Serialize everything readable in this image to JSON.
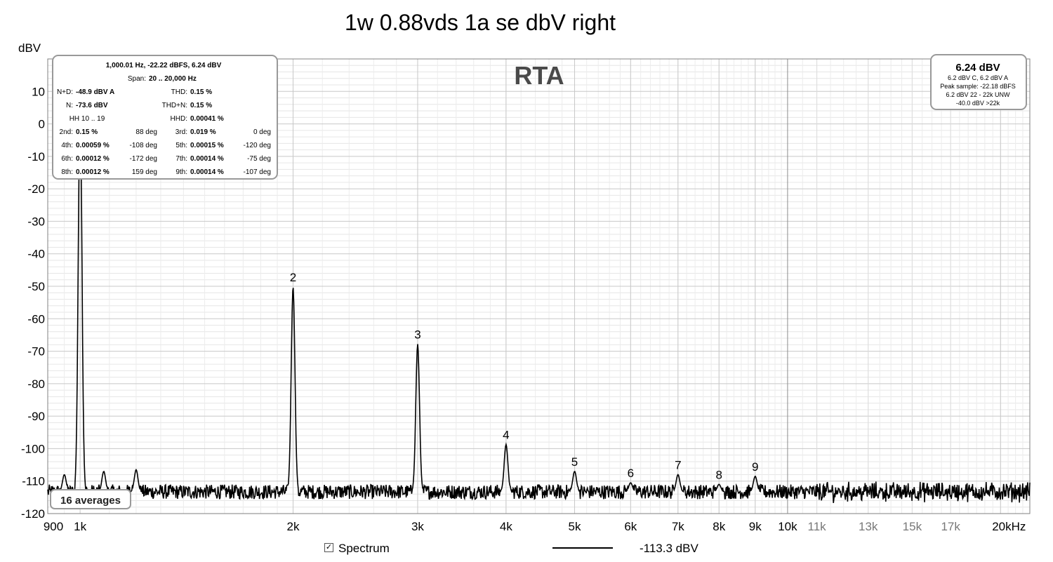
{
  "chart_data": {
    "type": "line",
    "title": "1w 0.88vds 1a se dbV right",
    "watermark": "RTA",
    "ylabel": "dBV",
    "xlabel": "",
    "x_scale": "log",
    "xlim": [
      900,
      22000
    ],
    "ylim": [
      -120,
      20
    ],
    "grid": true,
    "y_ticks": [
      10,
      0,
      -10,
      -20,
      -30,
      -40,
      -50,
      -60,
      -70,
      -80,
      -90,
      -100,
      -110,
      -120
    ],
    "x_ticks": [
      {
        "value": 900,
        "label": "900",
        "major": true
      },
      {
        "value": 1000,
        "label": "1k",
        "major": true
      },
      {
        "value": 2000,
        "label": "2k",
        "major": true
      },
      {
        "value": 3000,
        "label": "3k",
        "major": true
      },
      {
        "value": 4000,
        "label": "4k",
        "major": true
      },
      {
        "value": 5000,
        "label": "5k",
        "major": true
      },
      {
        "value": 6000,
        "label": "6k",
        "major": true
      },
      {
        "value": 7000,
        "label": "7k",
        "major": true
      },
      {
        "value": 8000,
        "label": "8k",
        "major": true
      },
      {
        "value": 9000,
        "label": "9k",
        "major": true
      },
      {
        "value": 10000,
        "label": "10k",
        "major": true
      },
      {
        "value": 11000,
        "label": "11k",
        "major": false
      },
      {
        "value": 13000,
        "label": "13k",
        "major": false
      },
      {
        "value": 15000,
        "label": "15k",
        "major": false
      },
      {
        "value": 17000,
        "label": "17k",
        "major": false
      },
      {
        "value": 20000,
        "label": "20kHz",
        "major": true
      }
    ],
    "series": [
      {
        "name": "Spectrum",
        "color": "#000000",
        "noise_floor_dbv": -113.3,
        "peaks": [
          {
            "label": "",
            "freq": 1000,
            "dbv": 6.2
          },
          {
            "label": "2",
            "freq": 2000,
            "dbv": -50.2
          },
          {
            "label": "3",
            "freq": 3000,
            "dbv": -67.8
          },
          {
            "label": "4",
            "freq": 4000,
            "dbv": -98.7
          },
          {
            "label": "5",
            "freq": 5000,
            "dbv": -107.0
          },
          {
            "label": "6",
            "freq": 6000,
            "dbv": -110.5
          },
          {
            "label": "7",
            "freq": 7000,
            "dbv": -108.0
          },
          {
            "label": "8",
            "freq": 8000,
            "dbv": -111.0
          },
          {
            "label": "9",
            "freq": 9000,
            "dbv": -108.5
          }
        ],
        "spurs": [
          {
            "freq": 950,
            "dbv": -108.0
          },
          {
            "freq": 1080,
            "dbv": -107.0
          },
          {
            "freq": 1200,
            "dbv": -106.5
          }
        ]
      }
    ]
  },
  "info_box": {
    "header": "1,000.01 Hz, -22.22 dBFS, 6.24 dBV",
    "span_label": "Span:",
    "span_value": "20 .. 20,000 Hz",
    "rows": [
      {
        "l1": "N+D:",
        "v1": "-48.9 dBV A",
        "x1": "",
        "l2": "THD:",
        "v2": "0.15 %",
        "x2": ""
      },
      {
        "l1": "N:",
        "v1": "-73.6 dBV",
        "x1": "",
        "l2": "THD+N:",
        "v2": "0.15 %",
        "x2": ""
      },
      {
        "l1": "HH 10 .. 19",
        "v1": "",
        "x1": "",
        "l2": "HHD:",
        "v2": "0.00041 %",
        "x2": ""
      },
      {
        "l1": "2nd:",
        "v1": "0.15 %",
        "x1": "88 deg",
        "l2": "3rd:",
        "v2": "0.019 %",
        "x2": "0 deg"
      },
      {
        "l1": "4th:",
        "v1": "0.00059 %",
        "x1": "-108 deg",
        "l2": "5th:",
        "v2": "0.00015 %",
        "x2": "-120 deg"
      },
      {
        "l1": "6th:",
        "v1": "0.00012 %",
        "x1": "-172 deg",
        "l2": "7th:",
        "v2": "0.00014 %",
        "x2": "-75 deg"
      },
      {
        "l1": "8th:",
        "v1": "0.00012 %",
        "x1": "159 deg",
        "l2": "9th:",
        "v2": "0.00014 %",
        "x2": "-107 deg"
      }
    ]
  },
  "level_box": {
    "main": "6.24 dBV",
    "lines": [
      "6.2 dBV C, 6.2 dBV A",
      "Peak sample: -22.18 dBFS",
      "6.2 dBV 22 - 22k UNW",
      "-40.0 dBV >22k"
    ]
  },
  "averages_label": "16 averages",
  "legend": {
    "checkbox_checked": true,
    "series_label": "Spectrum",
    "value": "-113.3 dBV"
  }
}
